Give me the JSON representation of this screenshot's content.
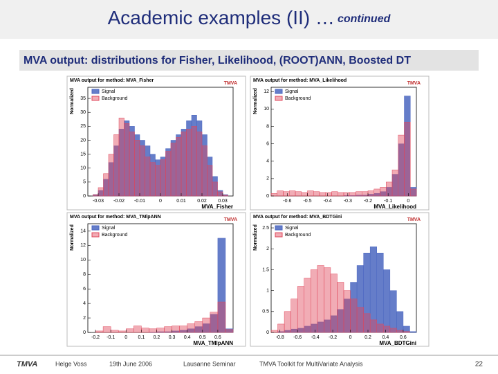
{
  "slide": {
    "title": "Academic examples (II) …",
    "title_suffix": "continued",
    "subtitle": "MVA output: distributions for Fisher, Likelihood, (ROOT)ANN, Boosted DT",
    "footer": {
      "logo": "TMVA",
      "author": "Helge Voss",
      "date": "19th June 2006",
      "event": "Lausanne Seminar",
      "toolkit": "TMVA Toolkit for MultiVariate Analysis",
      "page": 22
    }
  },
  "chart_data": [
    {
      "type": "histogram",
      "title": "MVA output for method: MVA_Fisher",
      "logo": "TMVA",
      "x_label": "MVA_Fisher",
      "y_label": "Normalized",
      "bins": [
        -0.035,
        -0.0325,
        -0.03,
        -0.0275,
        -0.025,
        -0.0225,
        -0.02,
        -0.0175,
        -0.015,
        -0.0125,
        -0.01,
        -0.0075,
        -0.005,
        -0.0025,
        0,
        0.0025,
        0.005,
        0.0075,
        0.01,
        0.0125,
        0.015,
        0.0175,
        0.02,
        0.0225,
        0.025,
        0.0275,
        0.03,
        0.0325,
        0.035
      ],
      "series": [
        {
          "name": "Signal",
          "color": "#4a66c0",
          "values": [
            0,
            0.5,
            2,
            6,
            12,
            18,
            24,
            27,
            25,
            22,
            20,
            18,
            15,
            13,
            14,
            17,
            20,
            22,
            24,
            27,
            29,
            27,
            22,
            14,
            7,
            2,
            0.5,
            0
          ]
        },
        {
          "name": "Background",
          "color": "#e0485c",
          "values": [
            0,
            0.5,
            3,
            8,
            15,
            22,
            28,
            26,
            23,
            20,
            18,
            14,
            12,
            11,
            13,
            16,
            19,
            21,
            23,
            24,
            25,
            23,
            18,
            11,
            5,
            1.5,
            0.3,
            0
          ]
        }
      ],
      "xlim": [
        -0.035,
        0.035
      ],
      "xticks": [
        -0.03,
        -0.02,
        -0.01,
        0,
        0.01,
        0.02,
        0.03
      ],
      "ylim": [
        0,
        39
      ],
      "yticks": [
        0,
        5,
        10,
        15,
        20,
        25,
        30,
        35
      ]
    },
    {
      "type": "histogram",
      "title": "MVA output for method: MVA_Likelihood",
      "logo": "TMVA",
      "x_label": "MVA_Likelihood",
      "y_label": "Normalized",
      "bins": [
        -0.68,
        -0.65,
        -0.62,
        -0.59,
        -0.56,
        -0.53,
        -0.5,
        -0.47,
        -0.44,
        -0.41,
        -0.38,
        -0.35,
        -0.32,
        -0.29,
        -0.26,
        -0.23,
        -0.2,
        -0.17,
        -0.14,
        -0.11,
        -0.08,
        -0.05,
        -0.02,
        0.01,
        0.04
      ],
      "series": [
        {
          "name": "Signal",
          "color": "#4a66c0",
          "values": [
            0,
            0,
            0,
            0,
            0,
            0,
            0,
            0,
            0,
            0,
            0,
            0,
            0.05,
            0.05,
            0.1,
            0.1,
            0.2,
            0.3,
            0.5,
            1,
            2.5,
            6,
            11.5,
            1
          ]
        },
        {
          "name": "Background",
          "color": "#e0485c",
          "values": [
            0.3,
            0.6,
            0.5,
            0.6,
            0.5,
            0.4,
            0.6,
            0.5,
            0.4,
            0.4,
            0.5,
            0.4,
            0.4,
            0.4,
            0.5,
            0.5,
            0.6,
            0.8,
            1,
            1.6,
            3,
            7,
            8.5,
            0.8
          ]
        }
      ],
      "xlim": [
        -0.68,
        0.04
      ],
      "xticks": [
        -0.6,
        -0.5,
        -0.4,
        -0.3,
        -0.2,
        -0.1,
        0
      ],
      "ylim": [
        0,
        12.5
      ],
      "yticks": [
        0,
        2,
        4,
        6,
        8,
        10,
        12
      ]
    },
    {
      "type": "histogram",
      "title": "MVA output for method: MVA_TMlpANN",
      "logo": "TMVA",
      "x_label": "MVA_TMlpANN",
      "y_label": "Normalized",
      "bins": [
        -0.25,
        -0.2,
        -0.15,
        -0.1,
        -0.05,
        0,
        0.05,
        0.1,
        0.15,
        0.2,
        0.25,
        0.3,
        0.35,
        0.4,
        0.45,
        0.5,
        0.55,
        0.6,
        0.65,
        0.7
      ],
      "series": [
        {
          "name": "Signal",
          "color": "#4a66c0",
          "values": [
            0,
            0,
            0,
            0,
            0,
            0,
            0,
            0,
            0.05,
            0.1,
            0.1,
            0.2,
            0.3,
            0.5,
            0.8,
            1.2,
            2.5,
            13,
            0.5
          ]
        },
        {
          "name": "Background",
          "color": "#e0485c",
          "values": [
            0,
            0.2,
            0.8,
            0.3,
            0.2,
            0.5,
            0.9,
            0.6,
            0.5,
            0.6,
            0.8,
            0.9,
            0.9,
            1.2,
            1.5,
            2,
            2.8,
            4.2,
            0.4
          ]
        }
      ],
      "xlim": [
        -0.25,
        0.7
      ],
      "xticks": [
        -0.2,
        -0.1,
        0,
        0.1,
        0.2,
        0.3,
        0.4,
        0.5,
        0.6
      ],
      "ylim": [
        0,
        15
      ],
      "yticks": [
        0,
        2,
        4,
        6,
        8,
        10,
        12,
        14
      ]
    },
    {
      "type": "histogram",
      "title": "MVA output for method: MVA_BDTGini",
      "logo": "TMVA",
      "x_label": "MVA_BDTGini",
      "y_label": "Normalized",
      "bins": [
        -0.9,
        -0.825,
        -0.75,
        -0.675,
        -0.6,
        -0.525,
        -0.45,
        -0.375,
        -0.3,
        -0.225,
        -0.15,
        -0.075,
        0,
        0.075,
        0.15,
        0.225,
        0.3,
        0.375,
        0.45,
        0.525,
        0.6,
        0.675,
        0.75
      ],
      "series": [
        {
          "name": "Signal",
          "color": "#4a66c0",
          "values": [
            0,
            0.02,
            0.05,
            0.08,
            0.1,
            0.15,
            0.2,
            0.25,
            0.3,
            0.4,
            0.55,
            0.8,
            1.2,
            1.6,
            1.9,
            2.05,
            1.9,
            1.5,
            1,
            0.5,
            0.15,
            0.02
          ]
        },
        {
          "name": "Background",
          "color": "#e0485c",
          "values": [
            0.05,
            0.2,
            0.5,
            0.8,
            1.1,
            1.3,
            1.5,
            1.6,
            1.55,
            1.4,
            1.2,
            1,
            0.8,
            0.6,
            0.45,
            0.3,
            0.2,
            0.15,
            0.1,
            0.05,
            0.02,
            0
          ]
        }
      ],
      "xlim": [
        -0.9,
        0.75
      ],
      "xticks": [
        -0.8,
        -0.6,
        -0.4,
        -0.2,
        0,
        0.2,
        0.4,
        0.6
      ],
      "ylim": [
        0,
        2.6
      ],
      "yticks": [
        0,
        0.5,
        1,
        1.5,
        2,
        2.5
      ]
    }
  ]
}
